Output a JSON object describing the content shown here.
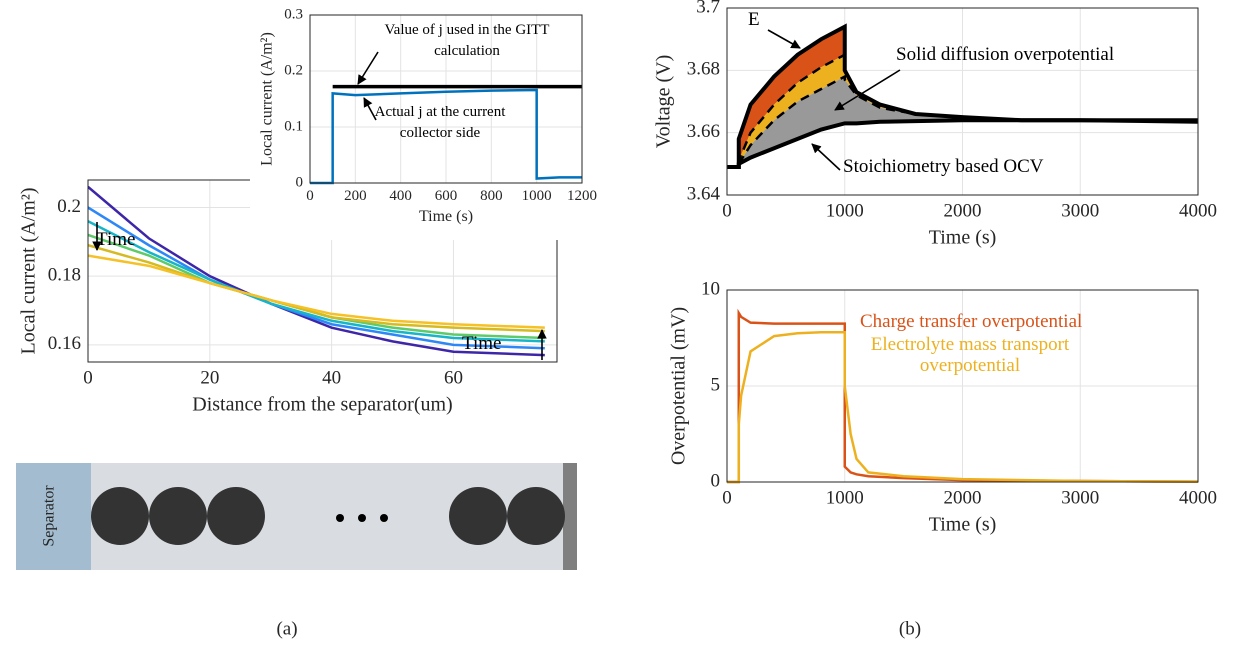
{
  "chart_data": [
    {
      "type": "line",
      "xlabel": "Distance from the separator(um)",
      "ylabel": "Local current (A/m²)",
      "x": [
        0,
        10,
        20,
        30,
        40,
        50,
        60,
        75
      ],
      "series": [
        {
          "color": "#3e26a8",
          "values": [
            0.206,
            0.191,
            0.18,
            0.172,
            0.165,
            0.161,
            0.158,
            0.157
          ]
        },
        {
          "color": "#2e87f7",
          "values": [
            0.2,
            0.189,
            0.179,
            0.172,
            0.166,
            0.163,
            0.16,
            0.159
          ]
        },
        {
          "color": "#18b5c8",
          "values": [
            0.196,
            0.187,
            0.179,
            0.172,
            0.167,
            0.164,
            0.162,
            0.161
          ]
        },
        {
          "color": "#5fca6a",
          "values": [
            0.192,
            0.186,
            0.178,
            0.173,
            0.168,
            0.165,
            0.163,
            0.162
          ]
        },
        {
          "color": "#d5bb21",
          "values": [
            0.189,
            0.184,
            0.178,
            0.173,
            0.168,
            0.166,
            0.165,
            0.164
          ]
        },
        {
          "color": "#f5c127",
          "values": [
            0.186,
            0.183,
            0.178,
            0.173,
            0.169,
            0.167,
            0.166,
            0.165
          ]
        }
      ],
      "xlim": [
        0,
        77
      ],
      "xticks": [
        0,
        20,
        40,
        60
      ],
      "ylim": [
        0.155,
        0.208
      ],
      "yticks": [
        0.16,
        0.18,
        0.2
      ],
      "grid": true,
      "annotations": [
        "Time",
        "Time"
      ]
    },
    {
      "type": "line",
      "xlabel": "Time (s)",
      "ylabel": "Local current (A/m²)",
      "series": [
        {
          "color": "#000000",
          "x": [
            100,
            1200
          ],
          "values": [
            0.172,
            0.172
          ]
        },
        {
          "color": "#0072bd",
          "x": [
            0,
            100,
            100,
            200,
            400,
            600,
            800,
            1000,
            1000,
            1100,
            1200
          ],
          "values": [
            0,
            0,
            0.16,
            0.157,
            0.16,
            0.163,
            0.165,
            0.166,
            0.008,
            0.01,
            0.01
          ]
        }
      ],
      "xlim": [
        0,
        1200
      ],
      "xticks": [
        0,
        200,
        400,
        600,
        800,
        1000,
        1200
      ],
      "ylim": [
        0,
        0.3
      ],
      "yticks": [
        0,
        0.1,
        0.2,
        0.3
      ],
      "grid": true,
      "annotations": [
        "Value of j used in the GITT calculation",
        "Actual j at the current collector side"
      ]
    },
    {
      "type": "area",
      "xlabel": "Time (s)",
      "ylabel": "Voltage (V)",
      "x": [
        0,
        100,
        100,
        200,
        400,
        600,
        800,
        1000,
        1000,
        1100,
        1300,
        1600,
        2000,
        2500,
        3000,
        4000
      ],
      "series": [
        {
          "color": "#000000",
          "fill": "#d95319",
          "dashed": false,
          "values": [
            3.649,
            3.649,
            3.658,
            3.669,
            3.678,
            3.685,
            3.69,
            3.694,
            3.68,
            3.673,
            3.669,
            3.666,
            3.665,
            3.664,
            3.664,
            3.6635
          ]
        },
        {
          "color": "#000000",
          "fill": "#edb120",
          "dashed": true,
          "values": [
            3.649,
            3.649,
            3.651,
            3.66,
            3.669,
            3.676,
            3.681,
            3.685,
            3.68,
            3.673,
            3.669,
            3.666,
            3.665,
            3.664,
            3.664,
            3.6635
          ]
        },
        {
          "color": "#000000",
          "fill": "#999999",
          "dashed": true,
          "values": [
            3.649,
            3.649,
            3.65,
            3.656,
            3.664,
            3.67,
            3.674,
            3.678,
            3.677,
            3.672,
            3.668,
            3.666,
            3.665,
            3.664,
            3.664,
            3.6635
          ]
        },
        {
          "color": "#000000",
          "dashed": false,
          "values": [
            3.649,
            3.649,
            3.65,
            3.652,
            3.655,
            3.658,
            3.661,
            3.663,
            3.663,
            3.663,
            3.6635,
            3.6637,
            3.664,
            3.664,
            3.664,
            3.664
          ]
        }
      ],
      "xlim": [
        0,
        4000
      ],
      "xticks": [
        0,
        1000,
        2000,
        3000,
        4000
      ],
      "ylim": [
        3.64,
        3.7
      ],
      "yticks": [
        3.64,
        3.66,
        3.68,
        3.7
      ],
      "grid": true,
      "annotations": [
        "E",
        "Solid diffusion overpotential",
        "Stoichiometry based OCV"
      ]
    },
    {
      "type": "line",
      "xlabel": "Time (s)",
      "ylabel": "Overpotential (mV)",
      "x": [
        0,
        100,
        100,
        120,
        200,
        400,
        600,
        800,
        1000,
        1000,
        1050,
        1100,
        1200,
        1500,
        2000,
        3000,
        4000
      ],
      "series": [
        {
          "name": "Charge transfer overpotential",
          "color": "#d95319",
          "values": [
            0,
            0,
            8.8,
            8.6,
            8.3,
            8.25,
            8.25,
            8.25,
            8.25,
            0.8,
            0.5,
            0.4,
            0.3,
            0.2,
            0.1,
            0.05,
            0.02
          ]
        },
        {
          "name": "Electrolyte mass transport overpotential",
          "color": "#edb120",
          "values": [
            0,
            0,
            3.0,
            4.5,
            6.8,
            7.6,
            7.75,
            7.8,
            7.8,
            5.0,
            2.5,
            1.2,
            0.5,
            0.3,
            0.15,
            0.05,
            0.02
          ]
        }
      ],
      "xlim": [
        0,
        4000
      ],
      "xticks": [
        0,
        1000,
        2000,
        3000,
        4000
      ],
      "ylim": [
        0,
        10
      ],
      "yticks": [
        0,
        5,
        10
      ],
      "grid": true
    }
  ],
  "diagram": {
    "label": "Separator"
  },
  "captions": [
    "(a)",
    "(b)"
  ]
}
